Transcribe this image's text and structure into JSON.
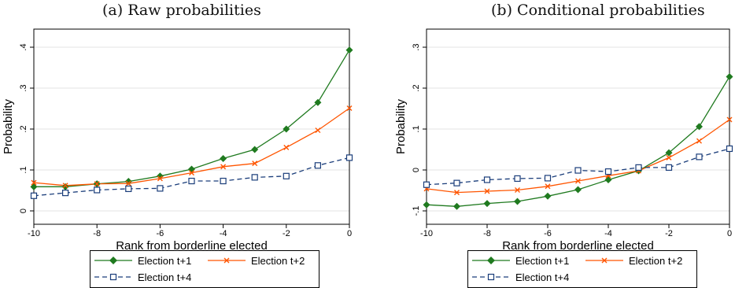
{
  "chart_data": [
    {
      "type": "line",
      "title": "(a) Raw probabilities",
      "xlabel": "Rank from borderline elected",
      "ylabel": "Probability",
      "x": [
        -10,
        -9,
        -8,
        -7,
        -6,
        -5,
        -4,
        -3,
        -2,
        -1,
        0
      ],
      "xlim": [
        -10,
        0
      ],
      "ylim": [
        0,
        0.4
      ],
      "xticks": [
        "-10",
        "-8",
        "-6",
        "-4",
        "-2",
        "0"
      ],
      "xtick_values": [
        -10,
        -8,
        -6,
        -4,
        -2,
        0
      ],
      "yticks": [
        "0",
        ".1",
        ".2",
        ".3",
        ".4"
      ],
      "ytick_values": [
        0,
        0.1,
        0.2,
        0.3,
        0.4
      ],
      "grid": "horizontal",
      "legend_position": "bottom",
      "series": [
        {
          "name": "Election t+1",
          "color": "#1f7a1f",
          "marker": "diamond",
          "dash": "solid",
          "values": [
            0.059,
            0.059,
            0.066,
            0.072,
            0.085,
            0.102,
            0.128,
            0.15,
            0.2,
            0.265,
            0.393
          ]
        },
        {
          "name": "Election t+2",
          "color": "#ff5500",
          "marker": "x",
          "dash": "solid",
          "values": [
            0.069,
            0.062,
            0.066,
            0.067,
            0.079,
            0.093,
            0.108,
            0.116,
            0.155,
            0.197,
            0.251
          ]
        },
        {
          "name": "Election t+4",
          "color": "#1a3d7a",
          "marker": "square",
          "dash": "dashed",
          "values": [
            0.037,
            0.044,
            0.051,
            0.054,
            0.055,
            0.073,
            0.073,
            0.082,
            0.085,
            0.111,
            0.13
          ]
        }
      ]
    },
    {
      "type": "line",
      "title": "(b) Conditional probabilities",
      "xlabel": "Rank from borderline elected",
      "ylabel": "Probability",
      "x": [
        -10,
        -9,
        -8,
        -7,
        -6,
        -5,
        -4,
        -3,
        -2,
        -1,
        0
      ],
      "xlim": [
        -10,
        0
      ],
      "ylim": [
        -0.1,
        0.3
      ],
      "xticks": [
        "-10",
        "-8",
        "-6",
        "-4",
        "-2",
        "0"
      ],
      "xtick_values": [
        -10,
        -8,
        -6,
        -4,
        -2,
        0
      ],
      "yticks": [
        "-.1",
        "0",
        ".1",
        ".2",
        ".3"
      ],
      "ytick_values": [
        -0.1,
        0,
        0.1,
        0.2,
        0.3
      ],
      "grid": "horizontal",
      "legend_position": "bottom",
      "series": [
        {
          "name": "Election t+1",
          "color": "#1f7a1f",
          "marker": "diamond",
          "dash": "solid",
          "values": [
            -0.085,
            -0.089,
            -0.082,
            -0.077,
            -0.064,
            -0.048,
            -0.024,
            -0.002,
            0.042,
            0.106,
            0.228
          ]
        },
        {
          "name": "Election t+2",
          "color": "#ff5500",
          "marker": "x",
          "dash": "solid",
          "values": [
            -0.046,
            -0.055,
            -0.052,
            -0.049,
            -0.04,
            -0.027,
            -0.014,
            -0.002,
            0.03,
            0.071,
            0.123
          ]
        },
        {
          "name": "Election t+4",
          "color": "#1a3d7a",
          "marker": "square",
          "dash": "dashed",
          "values": [
            -0.036,
            -0.032,
            -0.024,
            -0.021,
            -0.02,
            -0.001,
            -0.004,
            0.006,
            0.006,
            0.032,
            0.052
          ]
        }
      ]
    }
  ]
}
